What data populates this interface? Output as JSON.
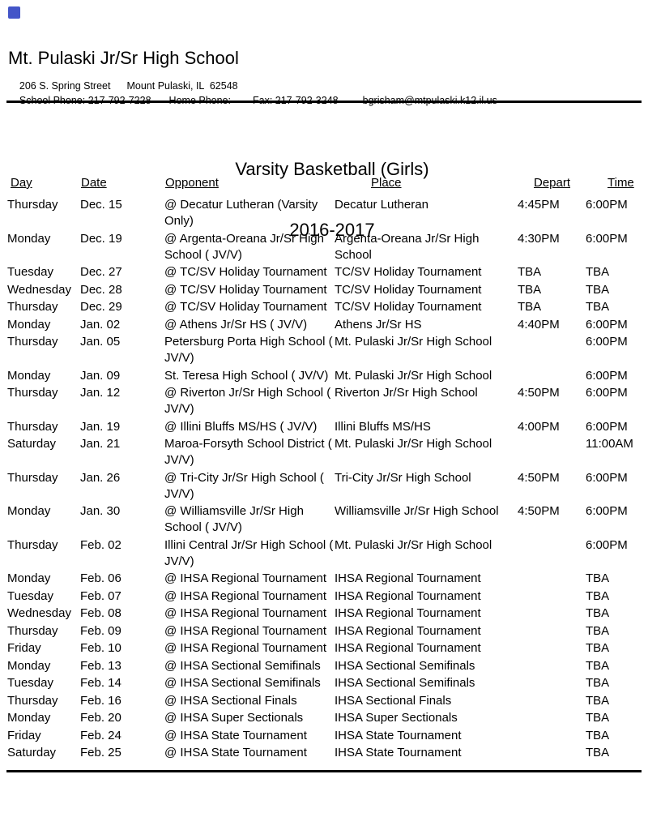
{
  "page": {
    "background": "#ffffff",
    "text_color": "#000000",
    "rule_color": "#000000",
    "logo_color": "#4355c8"
  },
  "header": {
    "school_name": "Mt. Pulaski Jr/Sr High School",
    "address_segments": [
      "206 S. Spring Street",
      "Mount Pulaski, IL  62548"
    ],
    "contact_segments": [
      "School Phone: 217-792-7228",
      "Home Phone:",
      "Fax: 217-792-3248",
      "bgrisham@mtpulaski.k12.il.us"
    ]
  },
  "title": {
    "line1": "Varsity Basketball (Girls)",
    "line2": "2016-2017"
  },
  "schedule": {
    "columns": [
      "Day",
      "Date",
      "Opponent",
      "Place",
      "Depart",
      "Time"
    ],
    "rows": [
      {
        "day": "Thursday",
        "date": "Dec. 15",
        "opponent": [
          "@ Decatur Lutheran (Varsity",
          "Only)"
        ],
        "place": [
          "Decatur Lutheran"
        ],
        "depart": "4:45PM",
        "time": "6:00PM"
      },
      {
        "day": "Monday",
        "date": "Dec. 19",
        "opponent": [
          "@ Argenta-Oreana Jr/Sr High",
          "School ( JV/V)"
        ],
        "place": [
          "Argenta-Oreana Jr/Sr High",
          "School"
        ],
        "depart": "4:30PM",
        "time": "6:00PM"
      },
      {
        "day": "Tuesday",
        "date": "Dec. 27",
        "opponent": [
          "@ TC/SV Holiday Tournament"
        ],
        "place": [
          "TC/SV Holiday Tournament"
        ],
        "depart": "TBA",
        "time": "TBA"
      },
      {
        "day": "Wednesday",
        "date": "Dec. 28",
        "opponent": [
          "@ TC/SV Holiday Tournament"
        ],
        "place": [
          "TC/SV Holiday Tournament"
        ],
        "depart": "TBA",
        "time": "TBA"
      },
      {
        "day": "Thursday",
        "date": "Dec. 29",
        "opponent": [
          "@ TC/SV Holiday Tournament"
        ],
        "place": [
          "TC/SV Holiday Tournament"
        ],
        "depart": "TBA",
        "time": "TBA"
      },
      {
        "day": "Monday",
        "date": "Jan. 02",
        "opponent": [
          "@ Athens Jr/Sr HS ( JV/V)"
        ],
        "place": [
          "Athens Jr/Sr HS"
        ],
        "depart": "4:40PM",
        "time": "6:00PM"
      },
      {
        "day": "Thursday",
        "date": "Jan. 05",
        "opponent": [
          "Petersburg Porta High School (",
          "JV/V)"
        ],
        "place": [
          "Mt. Pulaski Jr/Sr High School"
        ],
        "depart": "",
        "time": "6:00PM"
      },
      {
        "day": "Monday",
        "date": "Jan. 09",
        "opponent": [
          "St. Teresa High School ( JV/V)"
        ],
        "place": [
          "Mt. Pulaski Jr/Sr High School"
        ],
        "depart": "",
        "time": "6:00PM"
      },
      {
        "day": "Thursday",
        "date": "Jan. 12",
        "opponent": [
          "@ Riverton Jr/Sr High School (",
          "JV/V)"
        ],
        "place": [
          "Riverton Jr/Sr High School"
        ],
        "depart": "4:50PM",
        "time": "6:00PM"
      },
      {
        "day": "Thursday",
        "date": "Jan. 19",
        "opponent": [
          "@ Illini Bluffs MS/HS ( JV/V)"
        ],
        "place": [
          "Illini Bluffs MS/HS"
        ],
        "depart": "4:00PM",
        "time": "6:00PM"
      },
      {
        "day": "Saturday",
        "date": "Jan. 21",
        "opponent": [
          "Maroa-Forsyth School District (",
          "JV/V)"
        ],
        "place": [
          "Mt. Pulaski Jr/Sr High School"
        ],
        "depart": "",
        "time": "11:00AM"
      },
      {
        "day": "Thursday",
        "date": "Jan. 26",
        "opponent": [
          "@ Tri-City Jr/Sr High School (",
          "JV/V)"
        ],
        "place": [
          "Tri-City Jr/Sr High School"
        ],
        "depart": "4:50PM",
        "time": "6:00PM"
      },
      {
        "day": "Monday",
        "date": "Jan. 30",
        "opponent": [
          "@ Williamsville Jr/Sr High",
          "School ( JV/V)"
        ],
        "place": [
          "Williamsville Jr/Sr High School"
        ],
        "depart": "4:50PM",
        "time": "6:00PM"
      },
      {
        "day": "Thursday",
        "date": "Feb. 02",
        "opponent": [
          "Illini Central Jr/Sr High School (",
          "JV/V)"
        ],
        "place": [
          "Mt. Pulaski Jr/Sr High School"
        ],
        "depart": "",
        "time": "6:00PM"
      },
      {
        "day": "Monday",
        "date": "Feb. 06",
        "opponent": [
          "@ IHSA Regional Tournament"
        ],
        "place": [
          "IHSA Regional Tournament"
        ],
        "depart": "",
        "time": "TBA"
      },
      {
        "day": "Tuesday",
        "date": "Feb. 07",
        "opponent": [
          "@ IHSA Regional Tournament"
        ],
        "place": [
          "IHSA Regional Tournament"
        ],
        "depart": "",
        "time": "TBA"
      },
      {
        "day": "Wednesday",
        "date": "Feb. 08",
        "opponent": [
          "@ IHSA Regional Tournament"
        ],
        "place": [
          "IHSA Regional Tournament"
        ],
        "depart": "",
        "time": "TBA"
      },
      {
        "day": "Thursday",
        "date": "Feb. 09",
        "opponent": [
          "@ IHSA Regional Tournament"
        ],
        "place": [
          "IHSA Regional Tournament"
        ],
        "depart": "",
        "time": "TBA"
      },
      {
        "day": "Friday",
        "date": "Feb. 10",
        "opponent": [
          "@ IHSA Regional Tournament"
        ],
        "place": [
          "IHSA Regional Tournament"
        ],
        "depart": "",
        "time": "TBA"
      },
      {
        "day": "Monday",
        "date": "Feb. 13",
        "opponent": [
          "@ IHSA Sectional Semifinals"
        ],
        "place": [
          "IHSA Sectional Semifinals"
        ],
        "depart": "",
        "time": "TBA"
      },
      {
        "day": "Tuesday",
        "date": "Feb. 14",
        "opponent": [
          "@ IHSA Sectional Semifinals"
        ],
        "place": [
          "IHSA Sectional Semifinals"
        ],
        "depart": "",
        "time": "TBA"
      },
      {
        "day": "Thursday",
        "date": "Feb. 16",
        "opponent": [
          "@ IHSA Sectional Finals"
        ],
        "place": [
          "IHSA Sectional Finals"
        ],
        "depart": "",
        "time": "TBA"
      },
      {
        "day": "Monday",
        "date": "Feb. 20",
        "opponent": [
          "@ IHSA Super Sectionals"
        ],
        "place": [
          "IHSA Super Sectionals"
        ],
        "depart": "",
        "time": "TBA"
      },
      {
        "day": "Friday",
        "date": "Feb. 24",
        "opponent": [
          "@ IHSA State Tournament"
        ],
        "place": [
          "IHSA State Tournament"
        ],
        "depart": "",
        "time": "TBA"
      },
      {
        "day": "Saturday",
        "date": "Feb. 25",
        "opponent": [
          "@ IHSA State Tournament"
        ],
        "place": [
          "IHSA State Tournament"
        ],
        "depart": "",
        "time": "TBA"
      }
    ]
  }
}
